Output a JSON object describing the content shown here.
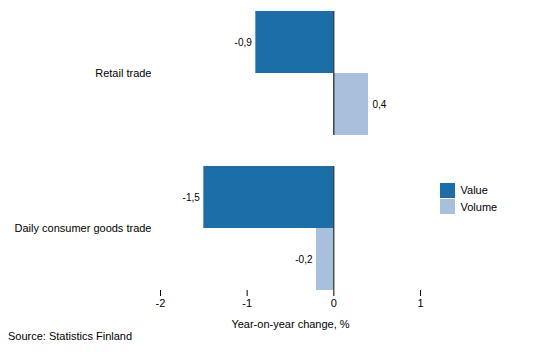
{
  "chart_data": {
    "type": "bar",
    "orientation": "horizontal",
    "categories": [
      "Daily consumer goods trade",
      "Retail trade"
    ],
    "series": [
      {
        "name": "Value",
        "color": "#1B6EA8",
        "values": [
          -1.5,
          -0.9
        ],
        "value_labels": [
          "-1,5",
          "-0,9"
        ]
      },
      {
        "name": "Volume",
        "color": "#A8C0DC",
        "values": [
          -0.2,
          0.4
        ],
        "value_labels": [
          "-0,2",
          "0,4"
        ]
      }
    ],
    "xlabel": "Year-on-year change, %",
    "xlim": [
      -2,
      1
    ],
    "xticks": [
      -2,
      -1,
      0,
      1
    ],
    "data_labels": true,
    "legend": "right",
    "caption": "Source: Statistics Finland"
  }
}
